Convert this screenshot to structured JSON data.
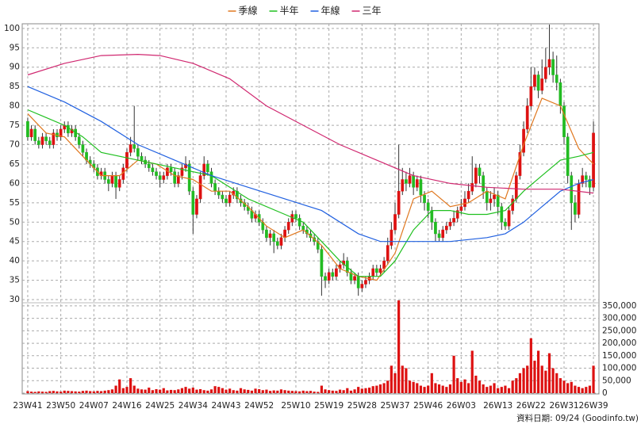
{
  "chart_data": {
    "type": "candlestick",
    "source": "資料日期: 09/24  (Goodinfo.tw)",
    "x": [
      0,
      1,
      2,
      3,
      4,
      5,
      6,
      7,
      8,
      9,
      10,
      11,
      12,
      13,
      14,
      15,
      16,
      17,
      18,
      19,
      20,
      21,
      22,
      23,
      24,
      25,
      26,
      27,
      28,
      29,
      30,
      31,
      32,
      33,
      34,
      35,
      36,
      37,
      38,
      39,
      40,
      41,
      42,
      43,
      44,
      45,
      46,
      47,
      48,
      49,
      50,
      51,
      52,
      53,
      54,
      55,
      56,
      57,
      58,
      59,
      60,
      61,
      62,
      63,
      64,
      65,
      66,
      67,
      68,
      69,
      70,
      71,
      72,
      73,
      74,
      75,
      76,
      77,
      78,
      79,
      80,
      81,
      82,
      83,
      84,
      85,
      86,
      87,
      88,
      89,
      90,
      91,
      92,
      93,
      94,
      95,
      96,
      97,
      98,
      99,
      100,
      101,
      102,
      103,
      104,
      105,
      106,
      107,
      108,
      109,
      110,
      111,
      112,
      113,
      114,
      115,
      116,
      117,
      118,
      119,
      120,
      121,
      122,
      123,
      124,
      125,
      126,
      127,
      128,
      129,
      130,
      131,
      132,
      133,
      134,
      135,
      136,
      137,
      138,
      139,
      140,
      141,
      142,
      143,
      144,
      145,
      146,
      147,
      148,
      149,
      150,
      151,
      152,
      153,
      154
    ],
    "open": [
      76,
      72,
      74,
      71,
      70,
      72,
      71,
      70,
      73,
      72,
      74,
      75,
      73,
      74,
      72,
      70,
      68,
      66,
      65,
      64,
      62,
      63,
      61,
      60,
      62,
      59,
      61,
      64,
      68,
      70,
      69,
      67,
      66,
      65,
      64,
      63,
      62,
      61,
      62,
      64,
      63,
      60,
      62,
      64,
      65,
      58,
      52,
      56,
      62,
      65,
      63,
      60,
      58,
      57,
      56,
      55,
      57,
      58,
      56,
      55,
      54,
      53,
      51,
      52,
      50,
      48,
      46,
      47,
      45,
      44,
      46,
      48,
      50,
      52,
      51,
      49,
      48,
      47,
      46,
      45,
      43,
      36,
      35,
      37,
      36,
      38,
      39,
      40,
      37,
      35,
      36,
      33,
      34,
      35,
      36,
      38,
      37,
      38,
      40,
      44,
      48,
      52,
      58,
      61,
      60,
      62,
      59,
      61,
      57,
      55,
      53,
      50,
      47,
      46,
      48,
      49,
      50,
      51,
      53,
      54,
      56,
      58,
      60,
      64,
      62,
      58,
      55,
      56,
      57,
      54,
      50,
      49,
      53,
      56,
      62,
      68,
      74,
      80,
      85,
      88,
      84,
      87,
      90,
      92,
      88,
      86,
      80,
      72,
      62,
      55,
      52,
      60,
      62,
      61,
      59
    ],
    "high": [
      77,
      75,
      75,
      72,
      73,
      73,
      72,
      74,
      74,
      75,
      76,
      76,
      75,
      75,
      73,
      71,
      69,
      67,
      66,
      65,
      64,
      64,
      62,
      63,
      63,
      62,
      65,
      69,
      72,
      80,
      70,
      68,
      67,
      66,
      65,
      64,
      63,
      63,
      65,
      65,
      64,
      63,
      65,
      67,
      66,
      59,
      57,
      63,
      67,
      66,
      64,
      61,
      59,
      58,
      57,
      58,
      59,
      59,
      57,
      56,
      55,
      54,
      53,
      53,
      51,
      49,
      48,
      48,
      46,
      47,
      49,
      51,
      53,
      53,
      52,
      50,
      49,
      48,
      47,
      46,
      44,
      37,
      38,
      38,
      39,
      40,
      42,
      41,
      38,
      37,
      37,
      35,
      36,
      37,
      39,
      39,
      39,
      41,
      46,
      50,
      55,
      70,
      64,
      63,
      64,
      63,
      62,
      62,
      58,
      56,
      54,
      51,
      48,
      49,
      50,
      51,
      53,
      54,
      56,
      58,
      60,
      67,
      65,
      65,
      63,
      59,
      58,
      59,
      58,
      55,
      51,
      54,
      57,
      63,
      70,
      76,
      82,
      90,
      90,
      89,
      92,
      95,
      101,
      94,
      93,
      87,
      81,
      73,
      63,
      57,
      61,
      64,
      63,
      62,
      76
    ],
    "low": [
      71,
      71,
      70,
      69,
      69,
      70,
      69,
      69,
      71,
      71,
      73,
      72,
      72,
      71,
      69,
      67,
      65,
      64,
      63,
      61,
      61,
      60,
      58,
      59,
      56,
      58,
      60,
      63,
      67,
      68,
      66,
      65,
      64,
      63,
      62,
      61,
      59,
      60,
      61,
      62,
      59,
      59,
      61,
      63,
      57,
      47,
      51,
      55,
      61,
      62,
      59,
      57,
      56,
      55,
      54,
      54,
      56,
      55,
      54,
      53,
      52,
      50,
      50,
      49,
      47,
      45,
      44,
      42,
      43,
      43,
      45,
      47,
      49,
      50,
      48,
      47,
      46,
      45,
      44,
      42,
      31,
      33,
      34,
      35,
      35,
      37,
      38,
      36,
      34,
      34,
      31,
      32,
      33,
      34,
      35,
      36,
      36,
      37,
      39,
      43,
      47,
      51,
      57,
      58,
      59,
      57,
      58,
      55,
      53,
      51,
      48,
      45,
      45,
      45,
      47,
      48,
      49,
      50,
      52,
      53,
      55,
      57,
      59,
      60,
      56,
      53,
      53,
      54,
      52,
      48,
      48,
      48,
      52,
      55,
      61,
      67,
      73,
      79,
      84,
      82,
      83,
      86,
      88,
      86,
      84,
      78,
      70,
      60,
      48,
      50,
      51,
      59,
      59,
      57,
      58
    ],
    "close": [
      72,
      74,
      71,
      70,
      72,
      71,
      70,
      73,
      72,
      74,
      75,
      73,
      74,
      72,
      70,
      68,
      66,
      65,
      64,
      62,
      63,
      61,
      60,
      62,
      59,
      61,
      64,
      68,
      70,
      69,
      67,
      66,
      65,
      64,
      63,
      62,
      61,
      62,
      64,
      63,
      60,
      62,
      64,
      65,
      58,
      52,
      56,
      62,
      65,
      63,
      60,
      58,
      57,
      56,
      55,
      57,
      58,
      56,
      55,
      54,
      53,
      51,
      52,
      50,
      48,
      46,
      47,
      45,
      44,
      46,
      48,
      50,
      52,
      51,
      49,
      48,
      47,
      46,
      45,
      43,
      36,
      35,
      37,
      36,
      38,
      39,
      40,
      37,
      35,
      36,
      33,
      34,
      35,
      36,
      38,
      37,
      38,
      40,
      44,
      48,
      52,
      58,
      61,
      60,
      62,
      59,
      61,
      57,
      55,
      53,
      50,
      47,
      46,
      48,
      49,
      50,
      51,
      53,
      54,
      56,
      58,
      60,
      64,
      62,
      58,
      55,
      56,
      57,
      54,
      50,
      49,
      53,
      56,
      62,
      68,
      74,
      80,
      85,
      88,
      84,
      87,
      90,
      92,
      88,
      86,
      80,
      72,
      62,
      55,
      52,
      60,
      62,
      61,
      59,
      73
    ],
    "up_color": "#dd1111",
    "down_color": "#22bb22",
    "series": [
      {
        "name": "季線",
        "color": "#e07820",
        "x": [
          0,
          5,
          10,
          15,
          20,
          25,
          30,
          35,
          40,
          45,
          50,
          55,
          60,
          65,
          70,
          75,
          80,
          85,
          90,
          95,
          100,
          105,
          110,
          115,
          120,
          125,
          130,
          135,
          140,
          145,
          150,
          154
        ],
        "values": [
          78,
          73,
          72,
          67,
          62,
          62,
          66,
          65,
          62,
          61,
          58,
          58,
          54,
          49,
          46,
          48,
          44,
          38,
          36,
          35,
          42,
          56,
          58,
          54,
          55,
          58,
          56,
          70,
          82,
          80,
          69,
          65
        ]
      },
      {
        "name": "半年",
        "color": "#20c020",
        "x": [
          0,
          5,
          10,
          15,
          20,
          30,
          40,
          50,
          60,
          70,
          75,
          80,
          85,
          90,
          96,
          100,
          105,
          110,
          115,
          120,
          125,
          130,
          135,
          140,
          145,
          150,
          154
        ],
        "values": [
          79,
          77,
          75,
          72,
          68,
          66,
          64,
          62,
          56,
          52,
          50,
          45,
          40,
          36,
          36,
          40,
          48,
          53,
          53,
          52,
          52,
          53,
          58,
          62,
          66,
          67,
          68
        ]
      },
      {
        "name": "年線",
        "color": "#2060e0",
        "x": [
          0,
          10,
          20,
          30,
          40,
          50,
          60,
          70,
          80,
          90,
          96,
          105,
          115,
          125,
          130,
          135,
          140,
          145,
          150,
          154
        ],
        "values": [
          85,
          81,
          76,
          70,
          66,
          62,
          59,
          56,
          53,
          47,
          45,
          45,
          45,
          46,
          47,
          50,
          54,
          58,
          60,
          61
        ]
      },
      {
        "name": "三年",
        "color": "#d02870",
        "x": [
          0,
          10,
          20,
          30,
          36,
          45,
          55,
          65,
          75,
          85,
          95,
          105,
          115,
          125,
          135,
          145,
          154
        ],
        "values": [
          88,
          91,
          93,
          93.3,
          93,
          91,
          87,
          80,
          75,
          70,
          66,
          62,
          60,
          59,
          58.5,
          58.5,
          57.5
        ]
      }
    ],
    "xlim": [
      -1.5,
      155.5
    ],
    "xticks": [
      {
        "value": 0,
        "label": "23W41"
      },
      {
        "value": 9,
        "label": "23W50"
      },
      {
        "value": 18,
        "label": "24W07"
      },
      {
        "value": 27,
        "label": "24W16"
      },
      {
        "value": 36,
        "label": "24W25"
      },
      {
        "value": 45,
        "label": "24W34"
      },
      {
        "value": 54,
        "label": "24W43"
      },
      {
        "value": 63,
        "label": "24W52"
      },
      {
        "value": 73,
        "label": "25W10"
      },
      {
        "value": 82,
        "label": "25W19"
      },
      {
        "value": 91,
        "label": "25W28"
      },
      {
        "value": 100,
        "label": "25W37"
      },
      {
        "value": 109,
        "label": "25W46"
      },
      {
        "value": 118,
        "label": "26W03"
      },
      {
        "value": 128,
        "label": "26W13"
      },
      {
        "value": 137,
        "label": "26W22"
      },
      {
        "value": 146,
        "label": "26W31"
      },
      {
        "value": 154,
        "label": "26W39"
      }
    ],
    "ylim": [
      29.6,
      101.2
    ],
    "yticks": [
      30,
      35,
      40,
      45,
      50,
      55,
      60,
      65,
      70,
      75,
      80,
      85,
      90,
      95,
      100
    ],
    "grid": true,
    "legend": "top",
    "volume": {
      "color": "#dd1111",
      "values": [
        8000,
        6000,
        5000,
        7000,
        6000,
        5000,
        8000,
        9000,
        7000,
        6000,
        10000,
        9000,
        8000,
        7000,
        6000,
        9000,
        10000,
        8000,
        7000,
        9000,
        8000,
        10000,
        12000,
        15000,
        30000,
        55000,
        20000,
        25000,
        60000,
        30000,
        18000,
        15000,
        14000,
        22000,
        12000,
        16000,
        14000,
        20000,
        11000,
        13000,
        12000,
        15000,
        20000,
        25000,
        18000,
        22000,
        14000,
        16000,
        12000,
        10000,
        15000,
        28000,
        25000,
        20000,
        14000,
        18000,
        12000,
        10000,
        20000,
        15000,
        13000,
        10000,
        18000,
        16000,
        12000,
        14000,
        9000,
        11000,
        10000,
        15000,
        12000,
        10000,
        9000,
        8000,
        7000,
        10000,
        8000,
        9000,
        6000,
        5000,
        30000,
        15000,
        12000,
        10000,
        9000,
        14000,
        12000,
        20000,
        10000,
        15000,
        25000,
        18000,
        20000,
        22000,
        28000,
        30000,
        35000,
        40000,
        50000,
        110000,
        80000,
        372000,
        110000,
        100000,
        50000,
        45000,
        40000,
        30000,
        25000,
        30000,
        80000,
        40000,
        35000,
        30000,
        25000,
        35000,
        150000,
        60000,
        45000,
        55000,
        40000,
        170000,
        70000,
        50000,
        35000,
        25000,
        30000,
        40000,
        20000,
        25000,
        30000,
        20000,
        50000,
        60000,
        80000,
        100000,
        110000,
        220000,
        130000,
        170000,
        110000,
        90000,
        160000,
        100000,
        80000,
        60000,
        50000,
        40000,
        45000,
        30000,
        25000,
        20000,
        25000,
        30000,
        110000
      ],
      "ylim": [
        0,
        375000
      ],
      "yticks": [
        0,
        {
          "value": 50000,
          "label": "50,000"
        },
        {
          "value": 100000,
          "label": "100,000"
        },
        {
          "value": 150000,
          "label": "150,000"
        },
        {
          "value": 200000,
          "label": "200,000"
        },
        {
          "value": 250000,
          "label": "250,000"
        },
        {
          "value": 300000,
          "label": "300,000"
        },
        {
          "value": 350000,
          "label": "350,000"
        }
      ]
    }
  }
}
